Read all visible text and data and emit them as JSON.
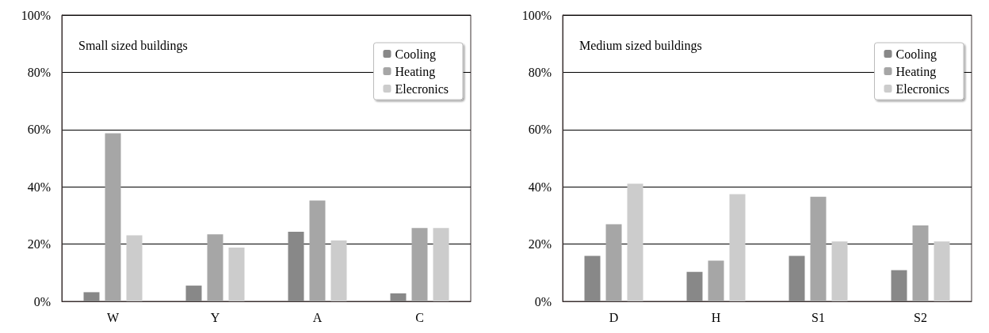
{
  "chart_data": [
    {
      "type": "bar",
      "title": "Small sized buildings",
      "categories": [
        "W",
        "Y",
        "A",
        "C"
      ],
      "series": [
        {
          "name": "Cooling",
          "color": "#888888",
          "values": [
            3.2,
            5.5,
            24.3,
            2.8
          ]
        },
        {
          "name": "Heating",
          "color": "#a6a6a6",
          "values": [
            58.7,
            23.4,
            35.2,
            25.6
          ]
        },
        {
          "name": "Elecronics",
          "color": "#cccccc",
          "values": [
            23.1,
            18.8,
            21.3,
            25.6
          ]
        }
      ],
      "ylim": [
        0,
        100
      ],
      "yticks": [
        {
          "value": 0,
          "label": "0%"
        },
        {
          "value": 20,
          "label": "20%"
        },
        {
          "value": 40,
          "label": "40%"
        },
        {
          "value": 60,
          "label": "60%"
        },
        {
          "value": 80,
          "label": "80%"
        },
        {
          "value": 100,
          "label": "100%"
        }
      ],
      "grid": "y",
      "legend": "top right"
    },
    {
      "type": "bar",
      "title": "Medium sized buildings",
      "categories": [
        "D",
        "H",
        "S1",
        "S2"
      ],
      "series": [
        {
          "name": "Cooling",
          "color": "#888888",
          "values": [
            15.9,
            10.3,
            15.9,
            10.9
          ]
        },
        {
          "name": "Heating",
          "color": "#a6a6a6",
          "values": [
            26.9,
            14.2,
            36.5,
            26.5
          ]
        },
        {
          "name": "Elecronics",
          "color": "#cccccc",
          "values": [
            41.1,
            37.4,
            20.9,
            20.9
          ]
        }
      ],
      "ylim": [
        0,
        100
      ],
      "yticks": [
        {
          "value": 0,
          "label": "0%"
        },
        {
          "value": 20,
          "label": "20%"
        },
        {
          "value": 40,
          "label": "40%"
        },
        {
          "value": 60,
          "label": "60%"
        },
        {
          "value": 80,
          "label": "80%"
        },
        {
          "value": 100,
          "label": "100%"
        }
      ],
      "grid": "y",
      "legend": "top right"
    }
  ]
}
